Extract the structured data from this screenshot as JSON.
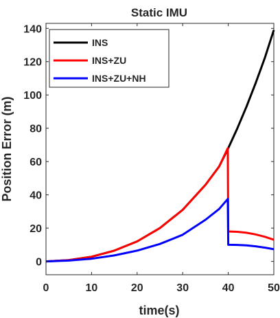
{
  "chart_data": {
    "type": "line",
    "title": "Static IMU",
    "xlabel": "time(s)",
    "ylabel": "Position Error (m)",
    "xlim": [
      0,
      50
    ],
    "ylim": [
      -8,
      143
    ],
    "xticks": [
      "0",
      "10",
      "20",
      "30",
      "40",
      "50"
    ],
    "yticks": [
      "0",
      "20",
      "40",
      "60",
      "80",
      "100",
      "120",
      "140"
    ],
    "grid": false,
    "legend_position": "top-left",
    "series": [
      {
        "name": "INS",
        "color": "#000000",
        "x": [
          0,
          5,
          10,
          15,
          20,
          25,
          30,
          35,
          38,
          40,
          42,
          44,
          46,
          48,
          50
        ],
        "y": [
          0,
          0.8,
          2.8,
          6.5,
          12,
          20,
          31,
          46,
          57,
          68,
          80,
          93,
          107,
          122,
          139
        ]
      },
      {
        "name": "INS+ZU",
        "color": "#ff0000",
        "x": [
          0,
          5,
          10,
          15,
          20,
          25,
          30,
          35,
          38,
          39.9,
          40,
          42,
          44,
          46,
          48,
          50
        ],
        "y": [
          0,
          0.8,
          2.8,
          6.5,
          12,
          20,
          31,
          46,
          57,
          68,
          18,
          17.8,
          17.2,
          16.2,
          14.8,
          13
        ]
      },
      {
        "name": "INS+ZU+NH",
        "color": "#0000ff",
        "x": [
          0,
          5,
          10,
          15,
          20,
          25,
          30,
          35,
          38,
          39.9,
          40,
          42,
          44,
          46,
          48,
          50
        ],
        "y": [
          0,
          0.5,
          1.6,
          3.6,
          6.5,
          10.5,
          16,
          25,
          31.5,
          37.5,
          10,
          9.9,
          9.6,
          9.1,
          8.3,
          7.3
        ]
      }
    ]
  }
}
